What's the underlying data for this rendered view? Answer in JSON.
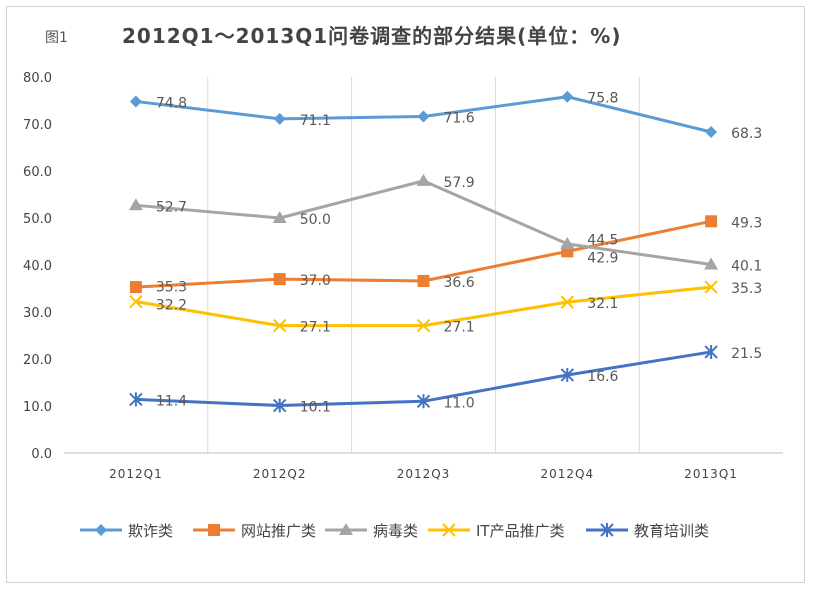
{
  "chart_data": {
    "type": "line",
    "figure_label": "图1",
    "title": "2012Q1～2013Q1问卷调查的部分结果(单位：%)",
    "categories": [
      "2012Q1",
      "2012Q2",
      "2012Q3",
      "2012Q4",
      "2013Q1"
    ],
    "ylim": [
      0,
      80
    ],
    "yticks": [
      "0.0",
      "10.0",
      "20.0",
      "30.0",
      "40.0",
      "50.0",
      "60.0",
      "70.0",
      "80.0"
    ],
    "grid": "vertical",
    "legend": "bottom",
    "series": [
      {
        "name": "欺诈类",
        "values": [
          74.8,
          71.1,
          71.6,
          75.8,
          68.3
        ],
        "color": "#5b9bd5",
        "marker": "diamond"
      },
      {
        "name": "网站推广类",
        "values": [
          35.3,
          37.0,
          36.6,
          42.9,
          49.3
        ],
        "color": "#ed7d31",
        "marker": "square"
      },
      {
        "name": "病毒类",
        "values": [
          52.7,
          50.0,
          57.9,
          44.5,
          40.1
        ],
        "color": "#a5a5a5",
        "marker": "triangle"
      },
      {
        "name": "IT产品推广类",
        "values": [
          32.2,
          27.1,
          27.1,
          32.1,
          35.3
        ],
        "color": "#ffc000",
        "marker": "x"
      },
      {
        "name": "教育培训类",
        "values": [
          11.4,
          10.1,
          11.0,
          16.6,
          21.5
        ],
        "color": "#4472c4",
        "marker": "star"
      }
    ]
  }
}
